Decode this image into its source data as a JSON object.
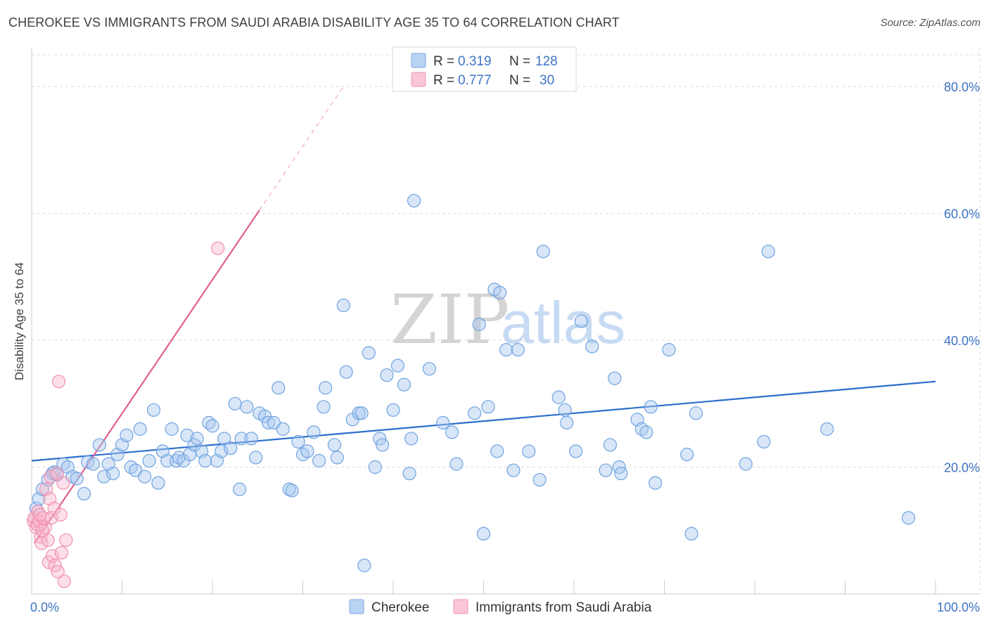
{
  "title": "CHEROKEE VS IMMIGRANTS FROM SAUDI ARABIA DISABILITY AGE 35 TO 64 CORRELATION CHART",
  "source": "Source: ZipAtlas.com",
  "watermark": {
    "zip": "ZIP",
    "atlas": "atlas"
  },
  "legend_top": [
    {
      "r_label": "R =",
      "r_value": "0.319",
      "n_label": "N =",
      "n_value": "128",
      "color": "#a8c8f0"
    },
    {
      "r_label": "R =",
      "r_value": "0.777",
      "n_label": "N =",
      "n_value": "30",
      "color": "#f8b8cc"
    }
  ],
  "chart_data": {
    "type": "scatter",
    "xlabel": "",
    "ylabel": "Disability Age 35 to 64",
    "xlim": [
      0,
      100
    ],
    "ylim": [
      0,
      85
    ],
    "x_tick_labels": [
      "0.0%",
      "100.0%"
    ],
    "y_ticks": [
      20,
      40,
      60,
      80
    ],
    "y_tick_labels": [
      "20.0%",
      "40.0%",
      "60.0%",
      "80.0%"
    ],
    "grid": true,
    "legend_position": "bottom",
    "series": [
      {
        "name": "Cherokee",
        "color": "#6fa3e0",
        "trend": {
          "x0": 0,
          "y0": 21.0,
          "x1": 100,
          "y1": 33.5,
          "color": "#2a6fcc"
        },
        "points": [
          [
            0.5,
            13.5
          ],
          [
            0.8,
            15.0
          ],
          [
            1.2,
            16.5
          ],
          [
            1.8,
            18.0
          ],
          [
            2.3,
            19.0
          ],
          [
            2.5,
            19.2
          ],
          [
            2.8,
            18.8
          ],
          [
            3.5,
            20.5
          ],
          [
            4.0,
            20.0
          ],
          [
            4.5,
            18.5
          ],
          [
            5.0,
            18.2
          ],
          [
            5.8,
            15.8
          ],
          [
            6.2,
            20.8
          ],
          [
            6.8,
            20.5
          ],
          [
            7.5,
            23.5
          ],
          [
            8.0,
            18.5
          ],
          [
            8.5,
            20.5
          ],
          [
            9.0,
            19.0
          ],
          [
            9.5,
            22.0
          ],
          [
            10.0,
            23.5
          ],
          [
            10.5,
            25.0
          ],
          [
            11.0,
            20.0
          ],
          [
            11.5,
            19.5
          ],
          [
            12.0,
            26.0
          ],
          [
            12.5,
            18.5
          ],
          [
            13.0,
            21.0
          ],
          [
            13.5,
            29.0
          ],
          [
            14.0,
            17.5
          ],
          [
            14.5,
            22.5
          ],
          [
            15.0,
            21.0
          ],
          [
            15.5,
            26.0
          ],
          [
            16.0,
            21.0
          ],
          [
            16.3,
            21.5
          ],
          [
            16.8,
            21.0
          ],
          [
            17.2,
            25.0
          ],
          [
            17.5,
            22.0
          ],
          [
            18.0,
            23.5
          ],
          [
            18.3,
            24.5
          ],
          [
            18.8,
            22.5
          ],
          [
            19.2,
            21.0
          ],
          [
            19.6,
            27.0
          ],
          [
            20.0,
            26.5
          ],
          [
            20.5,
            21.0
          ],
          [
            21.0,
            22.5
          ],
          [
            21.3,
            24.5
          ],
          [
            22.0,
            23.0
          ],
          [
            22.5,
            30.0
          ],
          [
            23.0,
            16.5
          ],
          [
            23.2,
            24.5
          ],
          [
            23.8,
            29.5
          ],
          [
            24.3,
            24.5
          ],
          [
            24.8,
            21.5
          ],
          [
            25.2,
            28.5
          ],
          [
            25.8,
            28.0
          ],
          [
            26.2,
            27.0
          ],
          [
            26.8,
            27.0
          ],
          [
            27.3,
            32.5
          ],
          [
            27.8,
            26.0
          ],
          [
            28.5,
            16.5
          ],
          [
            28.8,
            16.3
          ],
          [
            29.5,
            24.0
          ],
          [
            30.0,
            22.0
          ],
          [
            30.5,
            22.5
          ],
          [
            31.2,
            25.5
          ],
          [
            31.8,
            21.0
          ],
          [
            32.3,
            29.5
          ],
          [
            32.5,
            32.5
          ],
          [
            33.5,
            23.5
          ],
          [
            33.8,
            21.5
          ],
          [
            34.5,
            45.5
          ],
          [
            34.8,
            35.0
          ],
          [
            35.5,
            27.5
          ],
          [
            36.2,
            28.5
          ],
          [
            36.5,
            28.5
          ],
          [
            36.8,
            4.5
          ],
          [
            37.3,
            38.0
          ],
          [
            38.0,
            20.0
          ],
          [
            38.5,
            24.5
          ],
          [
            38.8,
            23.5
          ],
          [
            39.3,
            34.5
          ],
          [
            40.0,
            29.0
          ],
          [
            40.5,
            36.0
          ],
          [
            41.2,
            33.0
          ],
          [
            41.8,
            19.0
          ],
          [
            42.0,
            24.5
          ],
          [
            42.3,
            62.0
          ],
          [
            44.0,
            35.5
          ],
          [
            45.5,
            27.0
          ],
          [
            46.5,
            25.5
          ],
          [
            47.0,
            20.5
          ],
          [
            49.0,
            28.5
          ],
          [
            49.5,
            42.5
          ],
          [
            50.0,
            9.5
          ],
          [
            50.5,
            29.5
          ],
          [
            51.2,
            48.0
          ],
          [
            51.5,
            22.5
          ],
          [
            51.8,
            47.5
          ],
          [
            52.5,
            38.5
          ],
          [
            53.3,
            19.5
          ],
          [
            53.8,
            38.5
          ],
          [
            55.0,
            22.5
          ],
          [
            56.2,
            18.0
          ],
          [
            56.6,
            54.0
          ],
          [
            58.3,
            31.0
          ],
          [
            59.0,
            29.0
          ],
          [
            59.2,
            27.0
          ],
          [
            60.2,
            22.5
          ],
          [
            60.8,
            43.0
          ],
          [
            62.0,
            39.0
          ],
          [
            63.5,
            19.5
          ],
          [
            64.0,
            23.5
          ],
          [
            64.5,
            34.0
          ],
          [
            65.0,
            20.0
          ],
          [
            65.2,
            19.0
          ],
          [
            67.0,
            27.5
          ],
          [
            67.5,
            26.0
          ],
          [
            68.0,
            25.5
          ],
          [
            68.5,
            29.5
          ],
          [
            69.0,
            17.5
          ],
          [
            70.5,
            38.5
          ],
          [
            72.5,
            22.0
          ],
          [
            73.0,
            9.5
          ],
          [
            73.5,
            28.5
          ],
          [
            79.0,
            20.5
          ],
          [
            81.0,
            24.0
          ],
          [
            81.5,
            54.0
          ],
          [
            88.0,
            26.0
          ],
          [
            97.0,
            12.0
          ]
        ]
      },
      {
        "name": "Immigrants from Saudi Arabia",
        "color": "#f090b0",
        "trend": {
          "x0": 0.3,
          "y0": 8.0,
          "x1": 25.2,
          "y1": 60.5,
          "x_dash_end": 34.5,
          "y_dash_end": 80.0,
          "color": "#e0608c"
        },
        "points": [
          [
            0.2,
            11.5
          ],
          [
            0.3,
            12.0
          ],
          [
            0.5,
            10.5
          ],
          [
            0.6,
            11.0
          ],
          [
            0.7,
            13.0
          ],
          [
            0.8,
            11.5
          ],
          [
            1.0,
            9.0
          ],
          [
            1.1,
            8.0
          ],
          [
            1.3,
            12.0
          ],
          [
            1.5,
            10.5
          ],
          [
            1.6,
            16.5
          ],
          [
            1.8,
            8.5
          ],
          [
            1.9,
            5.0
          ],
          [
            2.0,
            15.0
          ],
          [
            2.1,
            18.5
          ],
          [
            2.2,
            12.0
          ],
          [
            2.3,
            6.0
          ],
          [
            2.5,
            13.5
          ],
          [
            2.6,
            4.5
          ],
          [
            2.8,
            19.0
          ],
          [
            2.9,
            3.5
          ],
          [
            3.0,
            33.5
          ],
          [
            3.2,
            12.5
          ],
          [
            3.3,
            6.5
          ],
          [
            3.5,
            17.5
          ],
          [
            3.6,
            2.0
          ],
          [
            3.8,
            8.5
          ],
          [
            1.2,
            10.0
          ],
          [
            0.9,
            12.5
          ],
          [
            20.6,
            54.5
          ]
        ]
      }
    ]
  }
}
